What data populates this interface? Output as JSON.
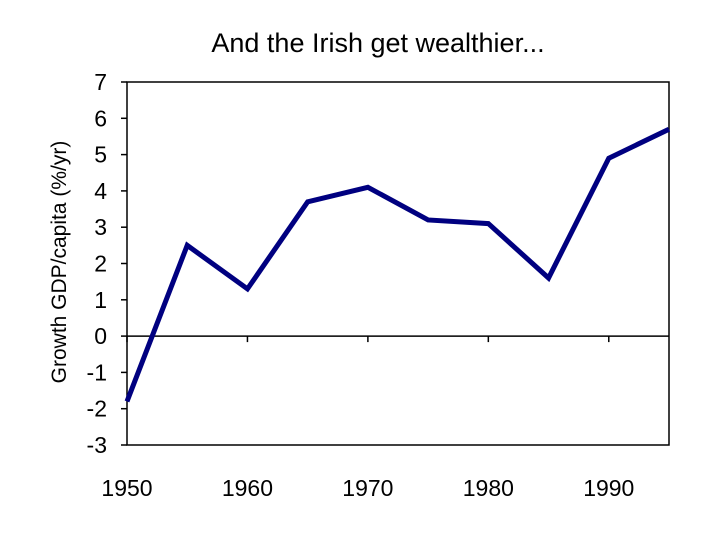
{
  "chart_data": {
    "type": "line",
    "title": "And the Irish get wealthier...",
    "xlabel": "",
    "ylabel": "Growth GDP/capita (%/yr)",
    "x": [
      1950,
      1955,
      1960,
      1965,
      1970,
      1975,
      1980,
      1985,
      1990,
      1995
    ],
    "series": [
      {
        "values": [
          -1.8,
          2.5,
          1.3,
          3.7,
          4.1,
          3.2,
          3.1,
          1.6,
          4.9,
          5.7
        ]
      }
    ],
    "xlim": [
      1950,
      1995
    ],
    "ylim": [
      -3,
      7
    ],
    "xticks": [
      1950,
      1960,
      1970,
      1980,
      1990
    ],
    "yticks": [
      7,
      6,
      5,
      4,
      3,
      2,
      1,
      0,
      -1,
      -2,
      -3
    ],
    "line_color": "#000080",
    "grid": false,
    "legend": "none"
  }
}
